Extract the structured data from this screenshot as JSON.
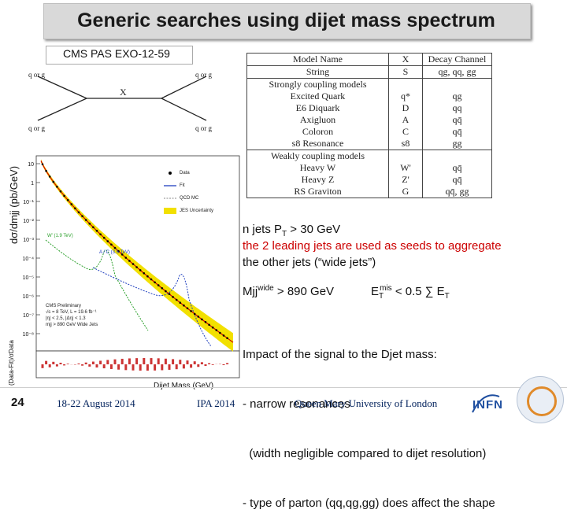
{
  "slide": {
    "title": "Generic searches using dijet mass spectrum",
    "reference": "CMS PAS EXO-12-59",
    "page_number": "24"
  },
  "feynman": {
    "q_in_top": "q or g",
    "q_in_bottom": "q or g",
    "q_out_top": "q or g",
    "q_out_bottom": "q or g",
    "resonance": "X"
  },
  "models_table": {
    "headers": [
      "Model Name",
      "X",
      "Decay Channel"
    ],
    "rows": [
      {
        "name": "String",
        "x": "S",
        "decay": "qg, qq, gg",
        "section": false
      },
      {
        "name": "Strongly coupling models",
        "x": "",
        "decay": "",
        "section": true
      },
      {
        "name": "Excited Quark",
        "x": "q*",
        "decay": "qg",
        "section": false
      },
      {
        "name": "E6 Diquark",
        "x": "D",
        "decay": "qq",
        "section": false
      },
      {
        "name": "Axigluon",
        "x": "A",
        "decay": "qq̄",
        "section": false
      },
      {
        "name": "Coloron",
        "x": "C",
        "decay": "qq̄",
        "section": false
      },
      {
        "name": "s8 Resonance",
        "x": "s8",
        "decay": "gg",
        "section": false
      },
      {
        "name": "Weakly coupling models",
        "x": "",
        "decay": "",
        "section": true
      },
      {
        "name": "Heavy W",
        "x": "W'",
        "decay": "qq̄",
        "section": false
      },
      {
        "name": "Heavy Z",
        "x": "Z'",
        "decay": "qq̄",
        "section": false
      },
      {
        "name": "RS Graviton",
        "x": "G",
        "decay": "qq̄, gg",
        "section": false
      }
    ]
  },
  "plot": {
    "ylabel": "dσ/dmjj (pb/GeV)",
    "xlabel": "Dijet Mass (GeV)",
    "ratio_label": "(Data-Fit)/σData",
    "legend": [
      "Data",
      "Fit",
      "QCD MC",
      "JES Uncertainty"
    ],
    "y_ticks": [
      "10",
      "1",
      "10⁻¹",
      "10⁻²",
      "10⁻³",
      "10⁻⁴",
      "10⁻⁵",
      "10⁻⁶",
      "10⁻⁷",
      "10⁻⁸"
    ],
    "signal_w": "W' (1.9 TeV)",
    "signal_a": "A / C (3.5 TeV)",
    "cms_text": [
      "CMS Preliminary",
      "√s = 8 TeV, L = 19.6 fb⁻¹",
      "|η| < 2.5, |Δη| < 1.3",
      "mjj > 890 GeV  Wide Jets"
    ]
  },
  "body_text": {
    "line1_prefix": "n jets P",
    "line1_sub": "T",
    "line1_suffix": " > 30 GeV",
    "line2_red": "the 2 leading jets",
    "line2_rest": " are used as seeds to aggregate",
    "line3": "the other jets (“wide jets”)",
    "mjj_prefix": "Mjj",
    "mjj_sup": "wide",
    "mjj_suffix": " > 890 GeV",
    "et_prefix": "E",
    "et_sub": "T",
    "et_sup": "mis",
    "et_suffix": " < 0.5 ∑ E",
    "et_sub2": "T",
    "impact_lines": [
      "Impact of the signal to the Djet mass:",
      "- narrow resonances",
      "  (width negligible compared to dijet resolution)",
      "- type of parton (qq,qg,gg) does affect the shape"
    ]
  },
  "footer": {
    "dates": "18-22 August 2014",
    "event": "IPA 2014",
    "institution": "Queen Mary University of London",
    "logo_text": "INFN"
  }
}
